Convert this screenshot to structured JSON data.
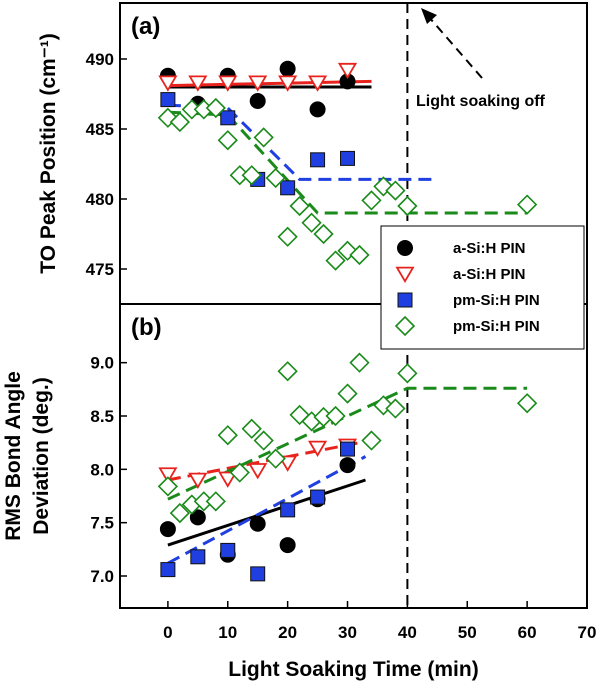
{
  "colors": {
    "black": "#000000",
    "red": "#e8231d",
    "blue": "#1f3fe0",
    "green": "#1a8a1a"
  },
  "chart_data": [
    {
      "panel_label": "(a)",
      "type": "scatter",
      "ylabel": "TO Peak Position (cm⁻¹)",
      "ylim": [
        472.5,
        494
      ],
      "yticks": [
        475,
        480,
        485,
        490
      ],
      "xlim": [
        -8,
        70
      ],
      "annotation": "Light soaking off",
      "series": [
        {
          "name": "a-Si:H PIN",
          "marker": "filled-circle",
          "color": "#000000",
          "points": [
            [
              0,
              488.8
            ],
            [
              5,
              486.8
            ],
            [
              10,
              488.8
            ],
            [
              15,
              487.0
            ],
            [
              20,
              489.3
            ],
            [
              25,
              486.4
            ],
            [
              30,
              488.4
            ]
          ],
          "fit": [
            [
              0,
              488.0
            ],
            [
              34,
              488.0
            ]
          ],
          "fit_style": "solid"
        },
        {
          "name": "a-Si:H PIN",
          "marker": "open-triangle-down",
          "color": "#e8231d",
          "points": [
            [
              0,
              488.3
            ],
            [
              5,
              488.3
            ],
            [
              10,
              488.3
            ],
            [
              15,
              488.3
            ],
            [
              20,
              488.3
            ],
            [
              25,
              488.3
            ],
            [
              30,
              489.2
            ]
          ],
          "fit": [
            [
              0,
              488.1
            ],
            [
              34,
              488.4
            ]
          ],
          "fit_style": "solid"
        },
        {
          "name": "pm-Si:H PIN",
          "marker": "filled-square",
          "color": "#1f3fe0",
          "points": [
            [
              0,
              487.1
            ],
            [
              10,
              485.8
            ],
            [
              15,
              481.4
            ],
            [
              20,
              480.8
            ],
            [
              25,
              482.8
            ],
            [
              30,
              482.9
            ]
          ],
          "fit": [
            [
              0,
              486.7
            ],
            [
              10,
              486.5
            ],
            [
              22,
              481.4
            ],
            [
              45,
              481.4
            ]
          ],
          "fit_style": "dashed"
        },
        {
          "name": "pm-Si:H PIN",
          "marker": "open-diamond",
          "color": "#1a8a1a",
          "points": [
            [
              0,
              485.8
            ],
            [
              2,
              485.5
            ],
            [
              4,
              486.4
            ],
            [
              6,
              486.4
            ],
            [
              8,
              486.5
            ],
            [
              10,
              484.2
            ],
            [
              12,
              481.7
            ],
            [
              14,
              481.7
            ],
            [
              16,
              484.4
            ],
            [
              18,
              481.5
            ],
            [
              20,
              477.3
            ],
            [
              22,
              479.5
            ],
            [
              24,
              478.3
            ],
            [
              26,
              477.5
            ],
            [
              28,
              475.6
            ],
            [
              30,
              476.3
            ],
            [
              32,
              476.0
            ],
            [
              34,
              479.9
            ],
            [
              36,
              480.9
            ],
            [
              38,
              480.6
            ],
            [
              40,
              479.5
            ],
            [
              60,
              479.6
            ]
          ],
          "fit": [
            [
              0,
              486.2
            ],
            [
              10,
              486.0
            ],
            [
              25,
              479.0
            ],
            [
              60,
              479.0
            ]
          ],
          "fit_style": "dashed"
        }
      ]
    },
    {
      "panel_label": "(b)",
      "type": "scatter",
      "ylabel": [
        "RMS Bond Angle",
        "Deviation (deg.)"
      ],
      "ylim": [
        6.7,
        9.55
      ],
      "yticks": [
        7.0,
        7.5,
        8.0,
        8.5,
        9.0
      ],
      "ytick_labels": [
        "7.0",
        "7.5",
        "8.0",
        "8.5",
        "9.0"
      ],
      "xlabel": "Light Soaking Time (min)",
      "xlim": [
        -8,
        70
      ],
      "xticks": [
        0,
        10,
        20,
        30,
        40,
        50,
        60,
        70
      ],
      "series": [
        {
          "name": "a-Si:H PIN",
          "marker": "filled-circle",
          "color": "#000000",
          "points": [
            [
              0,
              7.44
            ],
            [
              5,
              7.55
            ],
            [
              10,
              7.2
            ],
            [
              15,
              7.49
            ],
            [
              20,
              7.29
            ],
            [
              25,
              7.72
            ],
            [
              30,
              8.04
            ]
          ],
          "fit": [
            [
              0,
              7.29
            ],
            [
              33,
              7.9
            ]
          ],
          "fit_style": "solid"
        },
        {
          "name": "a-Si:H PIN",
          "marker": "open-triangle-down",
          "color": "#e8231d",
          "points": [
            [
              0,
              7.95
            ],
            [
              5,
              7.9
            ],
            [
              10,
              7.91
            ],
            [
              15,
              7.99
            ],
            [
              20,
              8.06
            ],
            [
              25,
              8.2
            ],
            [
              30,
              8.22
            ]
          ],
          "fit": [
            [
              0,
              7.9
            ],
            [
              32,
              8.25
            ]
          ],
          "fit_style": "dashed"
        },
        {
          "name": "pm-Si:H PIN",
          "marker": "filled-square",
          "color": "#1f3fe0",
          "points": [
            [
              0,
              7.06
            ],
            [
              5,
              7.18
            ],
            [
              10,
              7.24
            ],
            [
              15,
              7.02
            ],
            [
              20,
              7.62
            ],
            [
              25,
              7.74
            ],
            [
              30,
              8.19
            ]
          ],
          "fit": [
            [
              0,
              7.12
            ],
            [
              33,
              8.12
            ]
          ],
          "fit_style": "dashed"
        },
        {
          "name": "pm-Si:H PIN",
          "marker": "open-diamond",
          "color": "#1a8a1a",
          "points": [
            [
              0,
              7.84
            ],
            [
              2,
              7.59
            ],
            [
              4,
              7.67
            ],
            [
              6,
              7.7
            ],
            [
              8,
              7.7
            ],
            [
              10,
              8.32
            ],
            [
              12,
              7.97
            ],
            [
              14,
              8.38
            ],
            [
              16,
              8.27
            ],
            [
              18,
              8.1
            ],
            [
              20,
              8.92
            ],
            [
              22,
              8.51
            ],
            [
              24,
              8.45
            ],
            [
              26,
              8.49
            ],
            [
              28,
              8.5
            ],
            [
              30,
              8.71
            ],
            [
              32,
              9.0
            ],
            [
              34,
              8.27
            ],
            [
              36,
              8.6
            ],
            [
              38,
              8.57
            ],
            [
              40,
              8.9
            ],
            [
              60,
              8.62
            ]
          ],
          "fit": [
            [
              0,
              7.72
            ],
            [
              40,
              8.76
            ],
            [
              60,
              8.76
            ]
          ],
          "fit_style": "dashed"
        }
      ]
    }
  ]
}
